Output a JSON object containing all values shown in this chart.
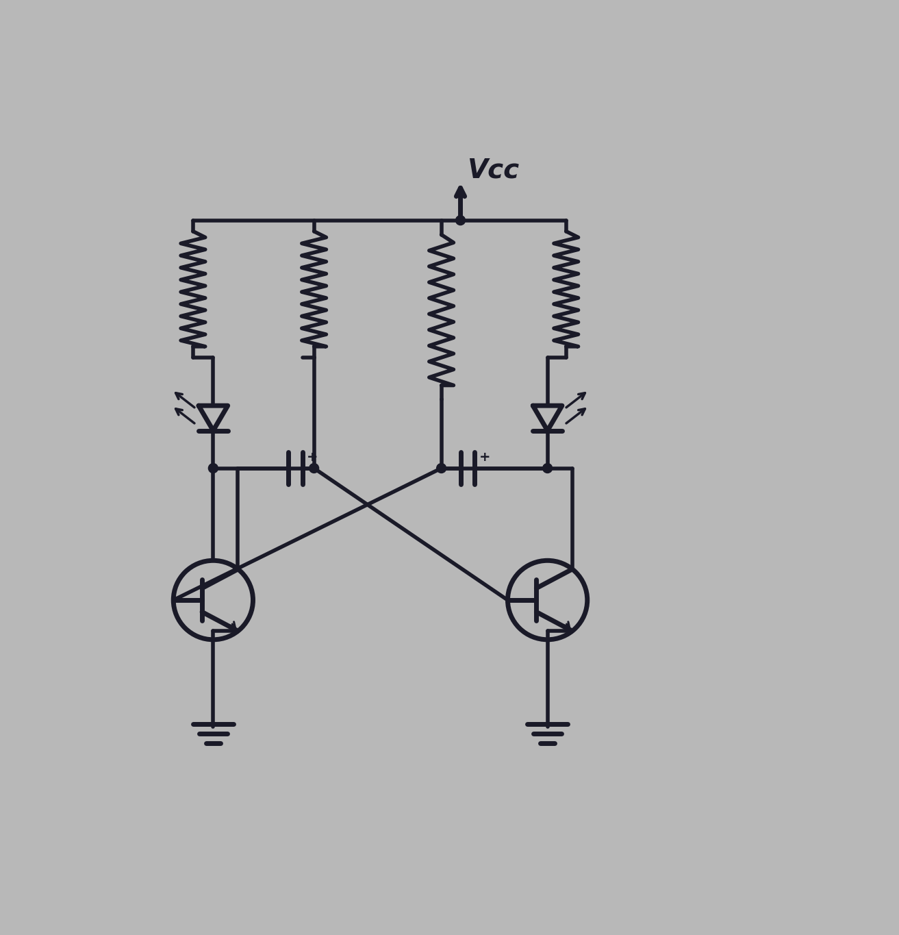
{
  "bg": "#b8b8b8",
  "lc": "#1a1a28",
  "lw": 4.0,
  "lwt": 5.0,
  "fig_w": 13.13,
  "fig_h": 13.65,
  "dpi": 100,
  "vcc_text": "Vcc",
  "vcc_fontsize": 28
}
